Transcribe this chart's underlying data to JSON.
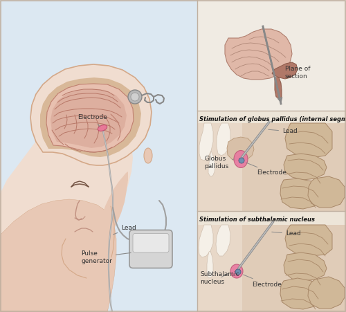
{
  "bg_color": "#f5f0eb",
  "text_color": "#333333",
  "title_color": "#111111",
  "skin_light": "#f0ddd0",
  "skin_mid": "#e8c8b5",
  "skin_dark": "#d4a888",
  "skin_shadow": "#c09070",
  "brain_light": "#e8c0b0",
  "brain_mid": "#d4a090",
  "brain_dark": "#c08070",
  "brain_fold": "#b87868",
  "skull_col": "#d8b898",
  "bg_left": "#e8ddd5",
  "bg_right_top": "#f0ece5",
  "bg_right_mid": "#ede5d8",
  "bg_right_bot": "#ede5d8",
  "tissue_col": "#e0cbb8",
  "tissue_dark": "#c8a888",
  "vent_col": "#f0e8dc",
  "gyri_col": "#c8a888",
  "gyri_dark": "#a07858",
  "lead_col": "#909090",
  "electrode_pink": "#e06080",
  "electrode_tip": "#7090b0",
  "device_col": "#d0d0d0",
  "wire_col": "#808080",
  "right_panel_border": "#c0b0a0",
  "panel_title_size": 6.0,
  "label_size": 6.5,
  "mid_title": "Stimulation of globus pallidus (internal segment)",
  "bot_title": "Stimulation of subthalamic nucleus",
  "label_plane": "Plane of\nsection",
  "label_electrode": "Electrode",
  "label_lead": "Lead",
  "label_pulse": "Pulse\ngenerator",
  "label_globus": "Globus\npallidus",
  "label_electrode2": "Electrode",
  "label_lead2": "Lead",
  "label_stn": "Subthalamic\nnucleus",
  "label_electrode3": "Electrode",
  "label_lead3": "Lead"
}
